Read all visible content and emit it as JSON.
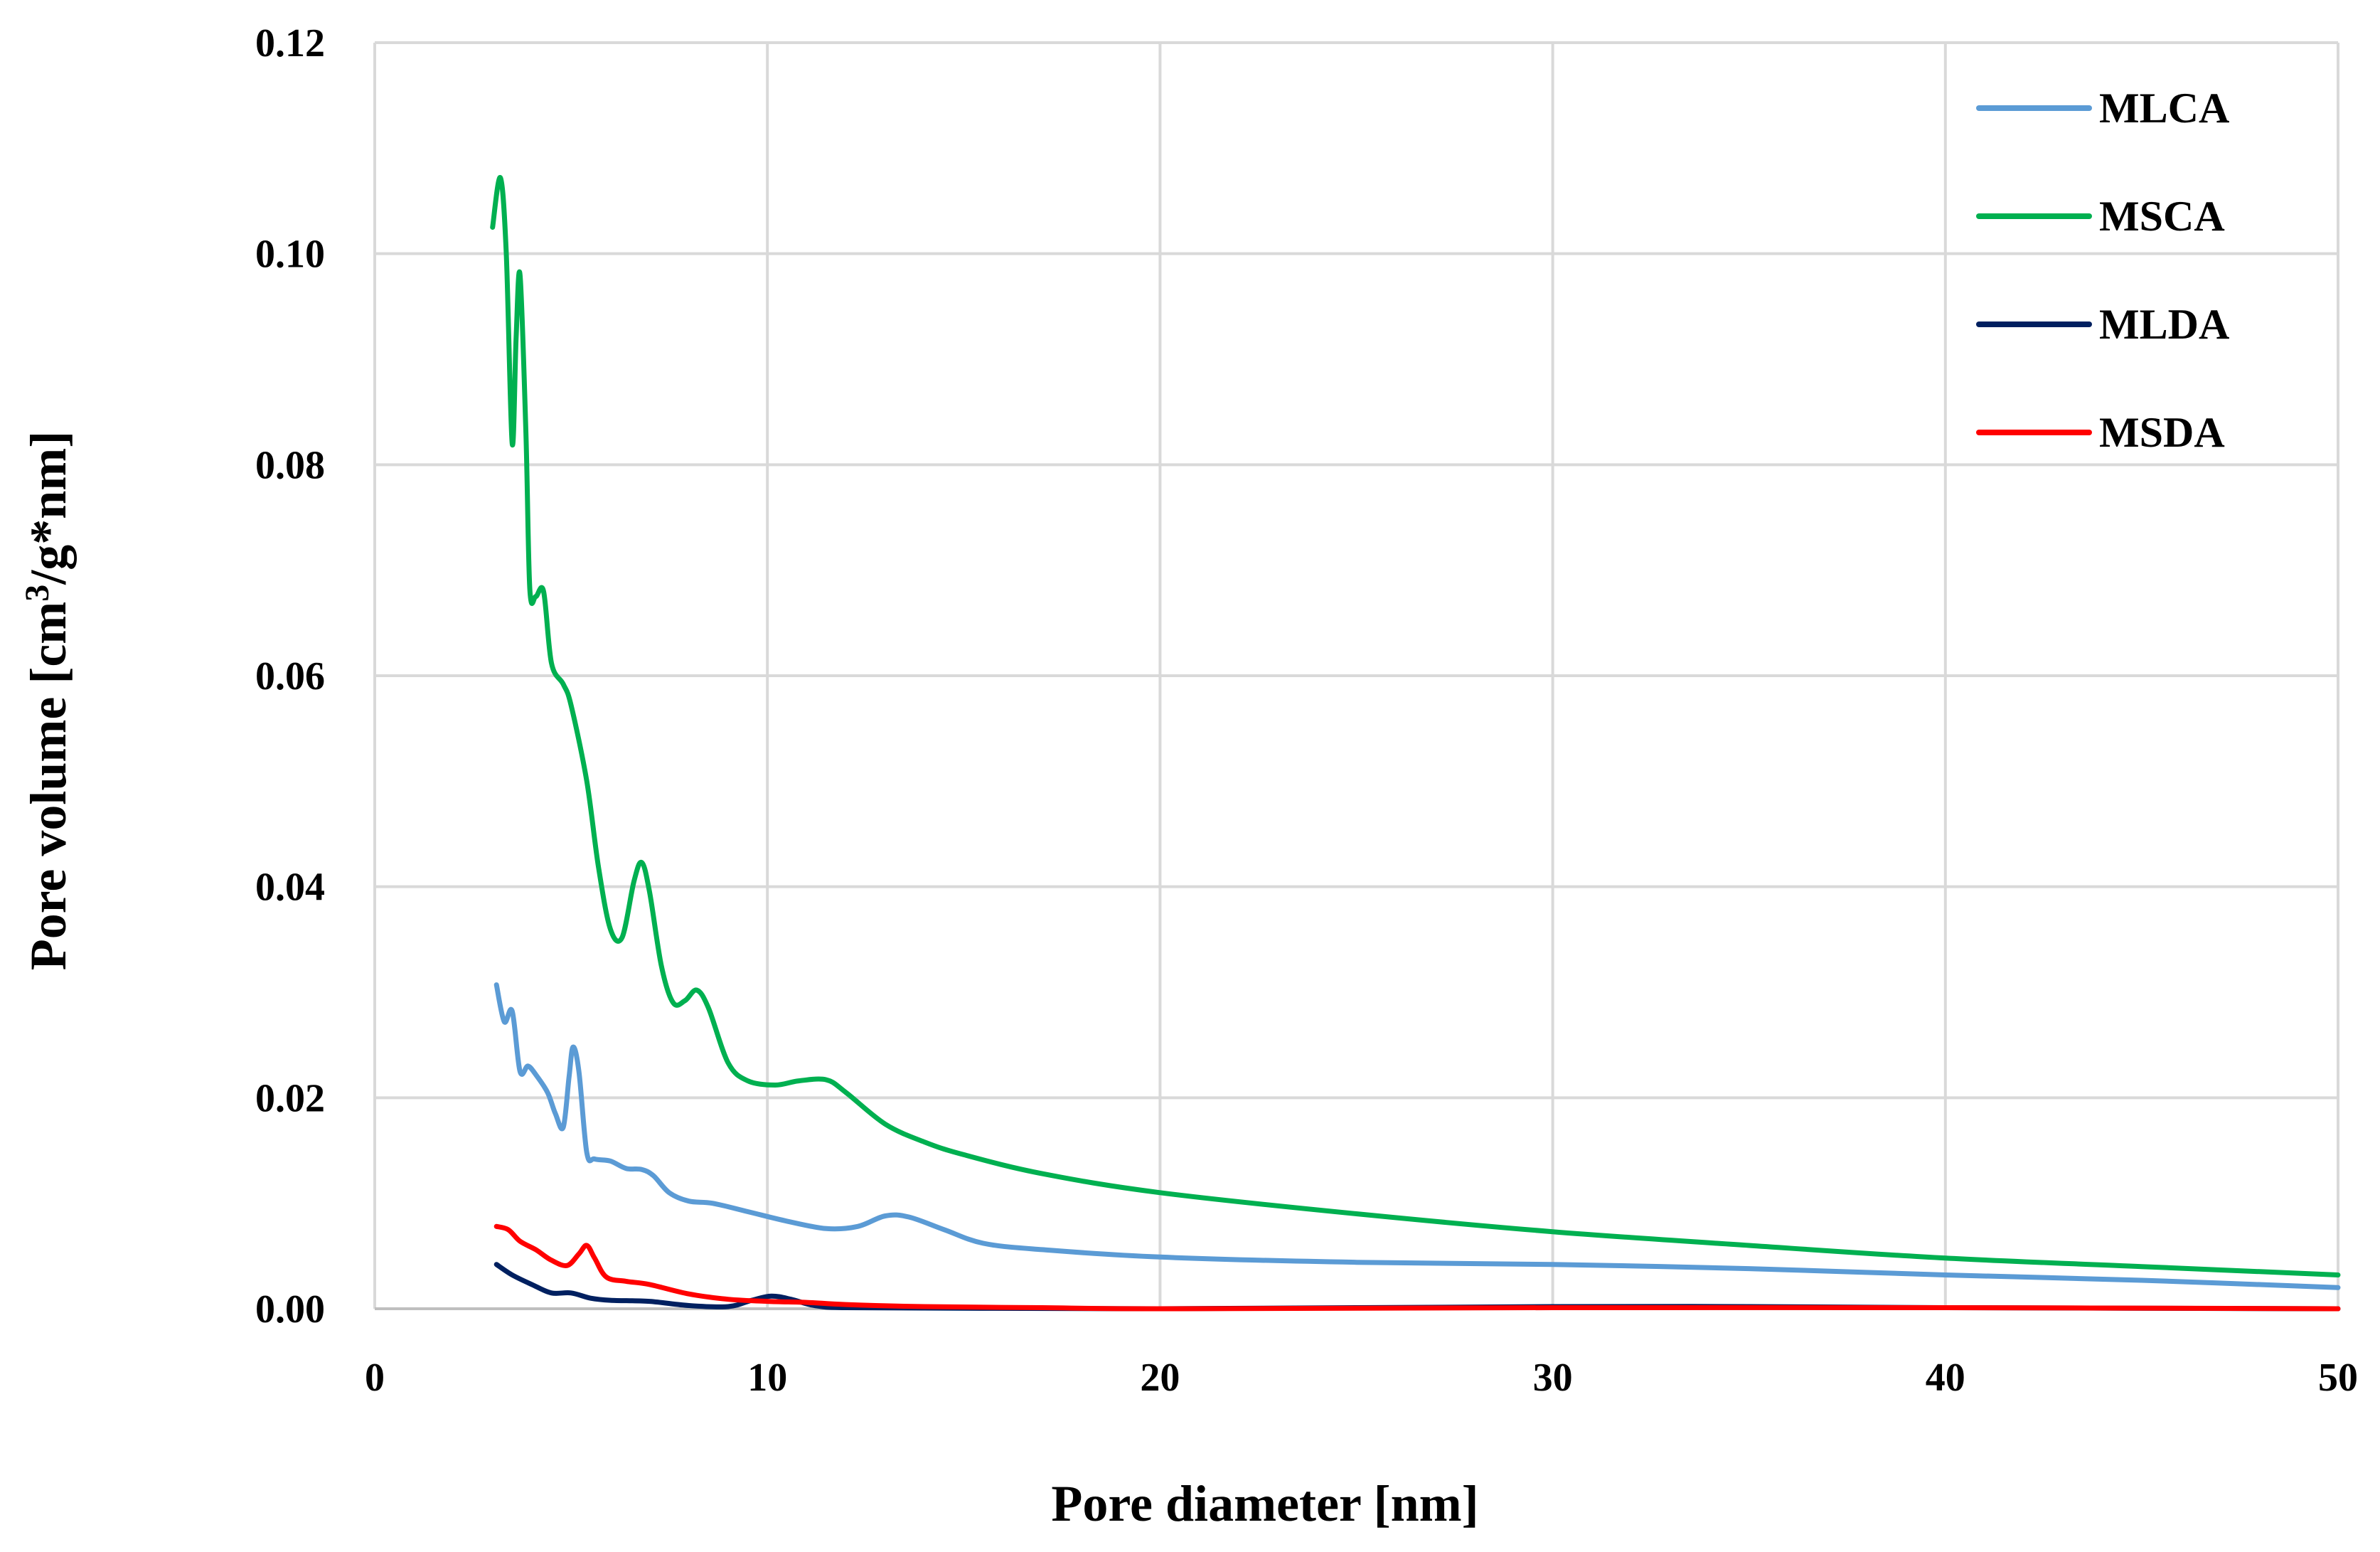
{
  "chart_data": {
    "type": "line",
    "title": "",
    "xlabel": "Pore diameter [nm]",
    "ylabel_parts": [
      "Pore volume [cm",
      "3",
      "/g*nm]"
    ],
    "xlim": [
      0,
      50
    ],
    "ylim": [
      0,
      0.12
    ],
    "xticks": [
      0,
      10,
      20,
      30,
      40,
      50
    ],
    "xtick_labels": [
      "0",
      "10",
      "20",
      "30",
      "40",
      "50"
    ],
    "yticks": [
      0,
      0.02,
      0.04,
      0.06,
      0.08,
      0.1,
      0.12
    ],
    "ytick_labels": [
      "0.00",
      "0.02",
      "0.04",
      "0.06",
      "0.08",
      "0.10",
      "0.12"
    ],
    "grid": true,
    "legend_position": "top-right",
    "series": [
      {
        "name": "MLCA",
        "color": "#5b9bd5",
        "points": [
          [
            3.1,
            0.0307
          ],
          [
            3.3,
            0.0272
          ],
          [
            3.5,
            0.0282
          ],
          [
            3.7,
            0.0225
          ],
          [
            3.9,
            0.023
          ],
          [
            4.1,
            0.0222
          ],
          [
            4.4,
            0.0205
          ],
          [
            4.6,
            0.0185
          ],
          [
            4.8,
            0.0172
          ],
          [
            4.95,
            0.022
          ],
          [
            5.05,
            0.0248
          ],
          [
            5.2,
            0.0225
          ],
          [
            5.4,
            0.0148
          ],
          [
            5.6,
            0.0142
          ],
          [
            6.0,
            0.014
          ],
          [
            6.4,
            0.0133
          ],
          [
            6.8,
            0.0132
          ],
          [
            7.1,
            0.0126
          ],
          [
            7.5,
            0.011
          ],
          [
            8.0,
            0.0102
          ],
          [
            8.6,
            0.01
          ],
          [
            9.5,
            0.0092
          ],
          [
            10.5,
            0.0083
          ],
          [
            11.5,
            0.0076
          ],
          [
            12.3,
            0.0078
          ],
          [
            13.0,
            0.0088
          ],
          [
            13.6,
            0.0087
          ],
          [
            14.5,
            0.0075
          ],
          [
            15.5,
            0.0062
          ],
          [
            17.0,
            0.0056
          ],
          [
            20.0,
            0.0049
          ],
          [
            25.0,
            0.0044
          ],
          [
            30.0,
            0.0042
          ],
          [
            35.0,
            0.0038
          ],
          [
            40.0,
            0.0032
          ],
          [
            45.0,
            0.0027
          ],
          [
            50.0,
            0.002
          ]
        ]
      },
      {
        "name": "MSCA",
        "color": "#00b050",
        "points": [
          [
            3.0,
            0.1025
          ],
          [
            3.2,
            0.1072
          ],
          [
            3.35,
            0.1
          ],
          [
            3.5,
            0.082
          ],
          [
            3.6,
            0.092
          ],
          [
            3.7,
            0.098
          ],
          [
            3.85,
            0.083
          ],
          [
            3.95,
            0.0682
          ],
          [
            4.1,
            0.0675
          ],
          [
            4.3,
            0.068
          ],
          [
            4.5,
            0.0612
          ],
          [
            4.8,
            0.0592
          ],
          [
            5.0,
            0.0572
          ],
          [
            5.4,
            0.05
          ],
          [
            5.7,
            0.0418
          ],
          [
            6.0,
            0.036
          ],
          [
            6.3,
            0.0352
          ],
          [
            6.6,
            0.0405
          ],
          [
            6.8,
            0.0423
          ],
          [
            7.0,
            0.0395
          ],
          [
            7.3,
            0.0325
          ],
          [
            7.6,
            0.029
          ],
          [
            7.9,
            0.0292
          ],
          [
            8.2,
            0.0302
          ],
          [
            8.5,
            0.0285
          ],
          [
            9.0,
            0.0233
          ],
          [
            9.5,
            0.0216
          ],
          [
            10.2,
            0.0212
          ],
          [
            10.8,
            0.0216
          ],
          [
            11.5,
            0.0217
          ],
          [
            12.0,
            0.0205
          ],
          [
            13.0,
            0.0175
          ],
          [
            14.0,
            0.0158
          ],
          [
            15.0,
            0.0146
          ],
          [
            17.0,
            0.0128
          ],
          [
            20.0,
            0.011
          ],
          [
            25.0,
            0.009
          ],
          [
            30.0,
            0.0073
          ],
          [
            35.0,
            0.006
          ],
          [
            40.0,
            0.0048
          ],
          [
            45.0,
            0.004
          ],
          [
            50.0,
            0.0032
          ]
        ]
      },
      {
        "name": "MLDA",
        "color": "#002060",
        "points": [
          [
            3.1,
            0.0042
          ],
          [
            3.5,
            0.0032
          ],
          [
            4.0,
            0.0023
          ],
          [
            4.5,
            0.0015
          ],
          [
            5.0,
            0.0015
          ],
          [
            5.5,
            0.001
          ],
          [
            6.0,
            0.0008
          ],
          [
            7.0,
            0.0007
          ],
          [
            8.0,
            0.0003
          ],
          [
            9.0,
            0.0002
          ],
          [
            9.6,
            0.0008
          ],
          [
            10.1,
            0.0012
          ],
          [
            10.6,
            0.0009
          ],
          [
            11.2,
            0.0003
          ],
          [
            12.0,
            0.0001
          ],
          [
            15.0,
            5e-05
          ],
          [
            20.0,
            0.0
          ],
          [
            30.0,
            0.0002
          ],
          [
            35.0,
            0.0002
          ],
          [
            40.0,
            0.0001
          ],
          [
            50.0,
            0.0
          ]
        ]
      },
      {
        "name": "MSDA",
        "color": "#ff0000",
        "points": [
          [
            3.1,
            0.0078
          ],
          [
            3.4,
            0.0075
          ],
          [
            3.7,
            0.0064
          ],
          [
            4.1,
            0.0056
          ],
          [
            4.5,
            0.0046
          ],
          [
            4.9,
            0.0041
          ],
          [
            5.2,
            0.0052
          ],
          [
            5.4,
            0.006
          ],
          [
            5.6,
            0.0048
          ],
          [
            5.9,
            0.003
          ],
          [
            6.4,
            0.0026
          ],
          [
            7.0,
            0.0023
          ],
          [
            8.0,
            0.0014
          ],
          [
            9.0,
            0.0009
          ],
          [
            10.0,
            0.0007
          ],
          [
            11.0,
            0.0006
          ],
          [
            12.0,
            0.0004
          ],
          [
            14.0,
            0.0002
          ],
          [
            17.0,
            0.0001
          ],
          [
            20.0,
            0.0
          ],
          [
            30.0,
            0.0001
          ],
          [
            40.0,
            0.0001
          ],
          [
            50.0,
            0.0
          ]
        ]
      }
    ]
  }
}
